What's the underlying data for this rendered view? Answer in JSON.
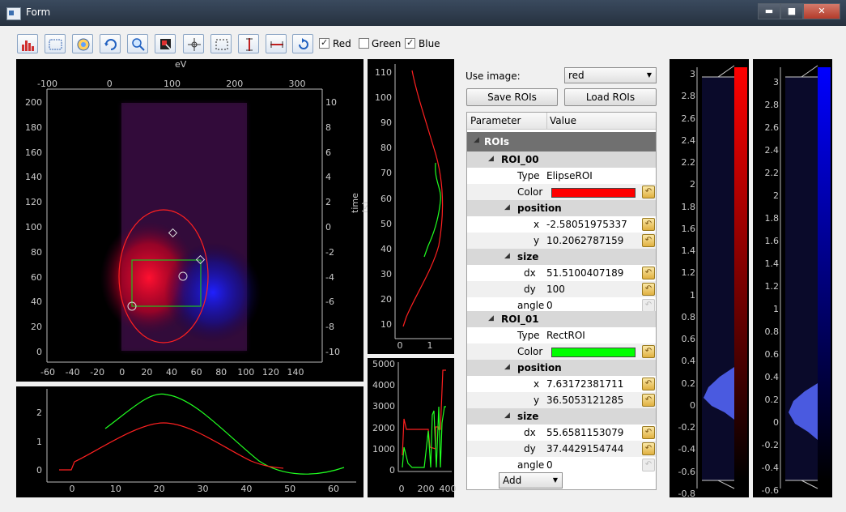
{
  "window": {
    "title": "Form",
    "minimize_label": "▬",
    "maximize_label": "■",
    "close_label": "✕"
  },
  "toolbar": {
    "buttons": [
      {
        "name": "histogram-button",
        "icon": "histogram-icon"
      },
      {
        "name": "roi-rect-button",
        "icon": "dashed-rect-icon"
      },
      {
        "name": "color-button",
        "icon": "color-wheel-icon"
      },
      {
        "name": "refresh-button",
        "icon": "refresh-icon"
      },
      {
        "name": "zoom-button",
        "icon": "zoom-icon"
      },
      {
        "name": "image-select-button",
        "icon": "image-select-icon"
      },
      {
        "name": "crosshair-button",
        "icon": "crosshair-icon"
      },
      {
        "name": "region-button",
        "icon": "region-select-icon"
      },
      {
        "name": "vertical-range-button",
        "icon": "vertical-range-icon"
      },
      {
        "name": "horizontal-range-button",
        "icon": "horizontal-range-icon"
      },
      {
        "name": "reset-button",
        "icon": "reset-icon"
      }
    ],
    "channels": [
      {
        "label": "Red",
        "checked": true
      },
      {
        "label": "Green",
        "checked": false
      },
      {
        "label": "Blue",
        "checked": true
      }
    ]
  },
  "image_plot": {
    "top_axis_label": "eV",
    "right_axis_label": "time (s)",
    "top_ticks": [
      "-100",
      "0",
      "100",
      "200",
      "300"
    ],
    "left_ticks": [
      "200",
      "180",
      "160",
      "140",
      "120",
      "100",
      "80",
      "60",
      "40",
      "20",
      "0"
    ],
    "right_ticks": [
      "10",
      "8",
      "6",
      "4",
      "2",
      "0",
      "-2",
      "-4",
      "-6",
      "-8",
      "-10"
    ],
    "bottom_ticks": [
      "-60",
      "-40",
      "-20",
      "0",
      "20",
      "40",
      "60",
      "80",
      "100",
      "120",
      "140"
    ]
  },
  "bottom_plot": {
    "y_ticks": [
      "2",
      "1",
      "0"
    ],
    "x_ticks": [
      "0",
      "10",
      "20",
      "30",
      "40",
      "50",
      "60"
    ]
  },
  "side_plot": {
    "y_ticks": [
      "110",
      "100",
      "90",
      "80",
      "70",
      "60",
      "50",
      "40",
      "30",
      "20",
      "10"
    ],
    "x_ticks": [
      "0",
      "1"
    ]
  },
  "small_plot": {
    "y_ticks": [
      "5000",
      "4000",
      "3000",
      "2000",
      "1000",
      "0"
    ],
    "x_ticks": [
      "0",
      "200",
      "400"
    ]
  },
  "controls": {
    "use_image_label": "Use image:",
    "use_image_value": "red",
    "save_rois_label": "Save ROIs",
    "load_rois_label": "Load ROIs",
    "header_parameter": "Parameter",
    "header_value": "Value",
    "rois_label": "ROIs",
    "add_label": "Add"
  },
  "rois": [
    {
      "name": "ROI_00",
      "type_label": "Type",
      "type": "ElipseROI",
      "color_label": "Color",
      "color": "#ff0000",
      "position_label": "position",
      "x_label": "x",
      "x": "-2.58051975337",
      "y_label": "y",
      "y": "10.2062787159",
      "size_label": "size",
      "dx_label": "dx",
      "dx": "51.5100407189",
      "dy_label": "dy",
      "dy": "100",
      "angle_label": "angle",
      "angle": "0"
    },
    {
      "name": "ROI_01",
      "type_label": "Type",
      "type": "RectROI",
      "color_label": "Color",
      "color": "#00ff00",
      "position_label": "position",
      "x_label": "x",
      "x": "7.63172381711",
      "y_label": "y",
      "y": "36.5053121285",
      "size_label": "size",
      "dx_label": "dx",
      "dx": "55.6581153079",
      "dy_label": "dy",
      "dy": "37.4429154744",
      "angle_label": "angle",
      "angle": "0"
    }
  ],
  "histograms": [
    {
      "channel": "red",
      "color": "#ff0000",
      "ticks": [
        "3",
        "2.8",
        "2.6",
        "2.4",
        "2.2",
        "2",
        "1.8",
        "1.6",
        "1.4",
        "1.2",
        "1",
        "0.8",
        "0.6",
        "0.4",
        "0.2",
        "0",
        "-0.2",
        "-0.4",
        "-0.6",
        "-0.8"
      ]
    },
    {
      "channel": "blue",
      "color": "#0000ff",
      "ticks": [
        "3",
        "2.8",
        "2.6",
        "2.4",
        "2.2",
        "2",
        "1.8",
        "1.6",
        "1.4",
        "1.2",
        "1",
        "0.8",
        "0.6",
        "0.4",
        "0.2",
        "0",
        "-0.2",
        "-0.4",
        "-0.6"
      ]
    }
  ],
  "colors": {
    "red_curve": "#ff2020",
    "green_curve": "#20ff20",
    "histogram_fill": "#4a5ae0"
  }
}
